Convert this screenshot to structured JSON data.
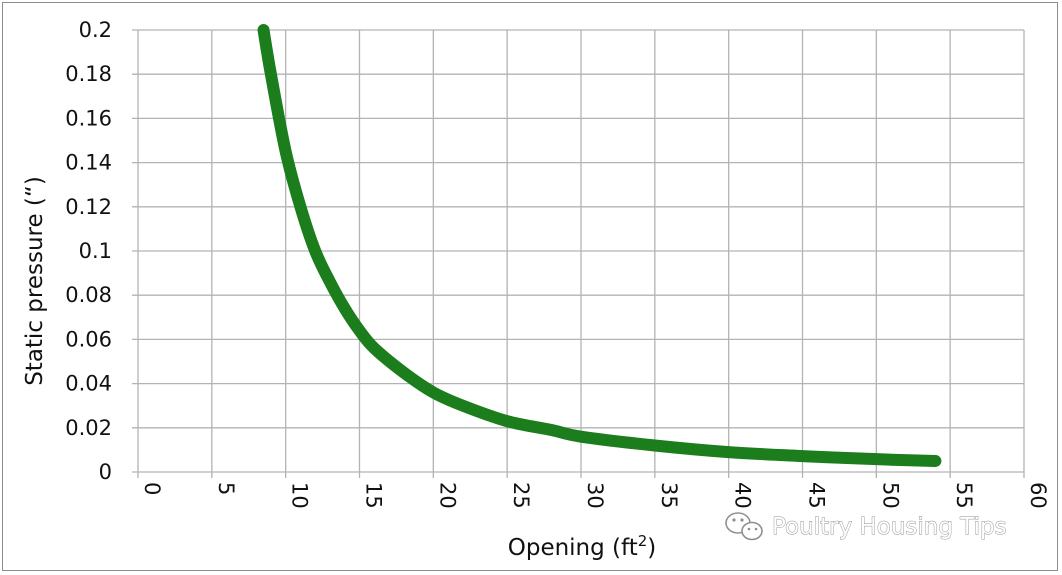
{
  "chart_data": {
    "type": "line",
    "title": "",
    "xlabel": "Opening (ft",
    "xlabel_superscript": "2",
    "xlabel_suffix": ")",
    "ylabel": "Static pressure (“)",
    "xlim": [
      0,
      60
    ],
    "ylim": [
      0,
      0.2
    ],
    "x_ticks": [
      "0",
      "5",
      "10",
      "15",
      "20",
      "25",
      "30",
      "35",
      "40",
      "45",
      "50",
      "55",
      "60"
    ],
    "y_ticks": [
      "0",
      "0.02",
      "0.04",
      "0.06",
      "0.08",
      "0.1",
      "0.12",
      "0.14",
      "0.16",
      "0.18",
      "0.2"
    ],
    "grid": true,
    "legend": "none",
    "series": [
      {
        "color": "#1b7d1b",
        "x": [
          8.5,
          9,
          10,
          11,
          12,
          13,
          14,
          15,
          16,
          18,
          20,
          22,
          25,
          28,
          30,
          35,
          40,
          45,
          50,
          54
        ],
        "y": [
          0.2,
          0.18,
          0.145,
          0.12,
          0.1,
          0.086,
          0.074,
          0.064,
          0.056,
          0.045,
          0.036,
          0.03,
          0.023,
          0.019,
          0.016,
          0.012,
          0.009,
          0.0072,
          0.0058,
          0.005
        ]
      }
    ]
  },
  "watermark": {
    "icon": "wechat-icon",
    "text": "Poultry Housing Tips"
  },
  "colors": {
    "grid": "#b3b3b3",
    "line": "#1b7d1b",
    "frame": "#8c8c8c"
  }
}
